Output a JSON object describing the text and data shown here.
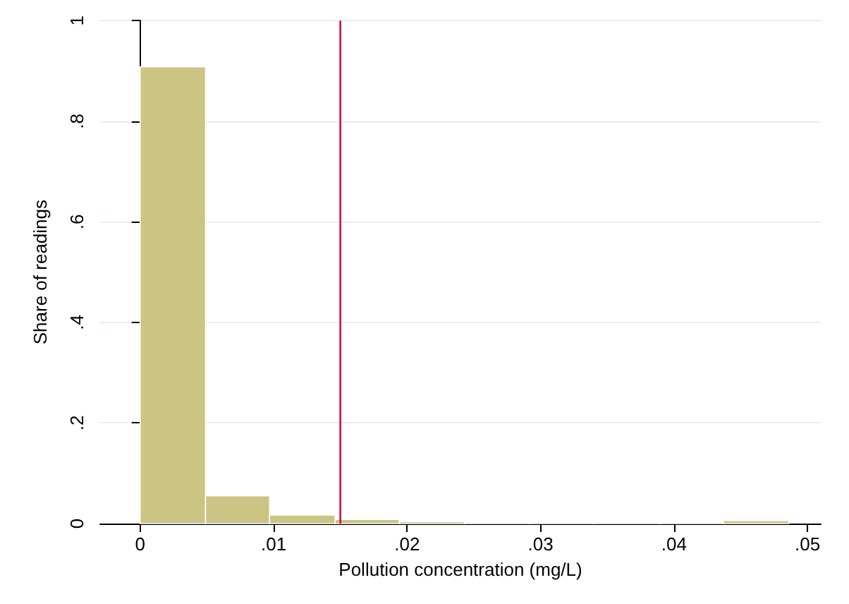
{
  "chart_data": {
    "type": "histogram",
    "xlabel": "Pollution concentration (mg/L)",
    "ylabel": "Share of readings",
    "bins": [
      0,
      0.0049,
      0.0097,
      0.0146,
      0.0194,
      0.0243,
      0.0292,
      0.034,
      0.0389,
      0.0437,
      0.0486
    ],
    "values": [
      0.908,
      0.055,
      0.017,
      0.008,
      0.004,
      0.001,
      0.001,
      0.001,
      0.001,
      0.006
    ],
    "color": "#cbc483",
    "xlim": [
      -0.003,
      0.051
    ],
    "xticks": [
      {
        "value": 0,
        "label": "0"
      },
      {
        "value": 0.01,
        "label": ".01"
      },
      {
        "value": 0.02,
        "label": ".02"
      },
      {
        "value": 0.03,
        "label": ".03"
      },
      {
        "value": 0.04,
        "label": ".04"
      },
      {
        "value": 0.05,
        "label": ".05"
      }
    ],
    "ylim": [
      0,
      1
    ],
    "yticks": [
      {
        "value": 0,
        "label": "0"
      },
      {
        "value": 0.2,
        "label": ".2"
      },
      {
        "value": 0.4,
        "label": ".4"
      },
      {
        "value": 0.6,
        "label": ".6"
      },
      {
        "value": 0.8,
        "label": ".8"
      },
      {
        "value": 1,
        "label": "1"
      }
    ],
    "grid": "y",
    "ref_lines": [
      {
        "axis": "x",
        "value": 0.015,
        "color": "#d2103c"
      }
    ]
  }
}
